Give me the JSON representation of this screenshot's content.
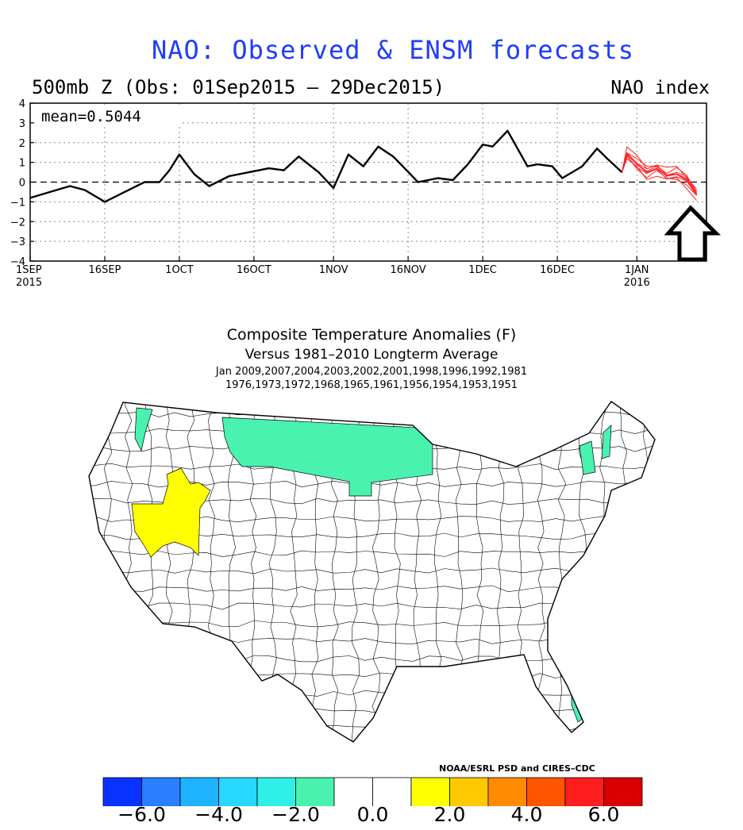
{
  "header": {
    "title": "NAO: Observed & ENSM forecasts",
    "subtitle": "500mb Z (Obs: 01Sep2015 – 29Dec2015)",
    "index_label": "NAO index",
    "mean_label": "mean=0.5044"
  },
  "composite": {
    "title": "Composite Temperature Anomalies (F)",
    "subtitle": "Versus 1981–2010 Longterm Average",
    "years_line1": "Jan  2009,2007,2004,2003,2002,2001,1998,1996,1992,1981",
    "years_line2": "1976,1973,1972,1968,1965,1961,1956,1954,1953,1951",
    "credit": "NOAA/ESRL PSD and CIRES–CDC",
    "colors": [
      "#0a32ff",
      "#2a7eff",
      "#1fb2ff",
      "#28d8ff",
      "#2ef0e6",
      "#4af2b0",
      "#ffffff",
      "#ffffff",
      "#ffff00",
      "#ffc800",
      "#ff8c00",
      "#ff5500",
      "#ff1e1e",
      "#d80000"
    ],
    "colorbar_labels": [
      "−6.0",
      "−4.0",
      "−2.0",
      "0.0",
      "2.0",
      "4.0",
      "6.0"
    ],
    "map_palette": {
      "cool": "#4af2b0",
      "warm": "#ffff00"
    }
  },
  "chart_data": [
    {
      "type": "line",
      "title": "NAO: Observed & ENSM forecasts",
      "ylabel": "NAO index",
      "ylim": [
        -4,
        4
      ],
      "y_ticks": [
        "4",
        "3",
        "2",
        "1",
        "0",
        "−1",
        "−2",
        "−3",
        "−4"
      ],
      "x_ticks": [
        "1SEP",
        "16SEP",
        "1OCT",
        "16OCT",
        "1NOV",
        "16NOV",
        "1DEC",
        "16DEC",
        "1JAN"
      ],
      "x_year_labels": [
        "2015",
        "2016"
      ],
      "mean": 0.5044,
      "grid": true,
      "series": [
        {
          "color": "#000000",
          "x": [
            "2015-09-01",
            "2015-09-05",
            "2015-09-09",
            "2015-09-12",
            "2015-09-16",
            "2015-09-20",
            "2015-09-24",
            "2015-09-27",
            "2015-09-29",
            "2015-10-01",
            "2015-10-04",
            "2015-10-07",
            "2015-10-11",
            "2015-10-15",
            "2015-10-19",
            "2015-10-22",
            "2015-10-25",
            "2015-10-29",
            "2015-11-01",
            "2015-11-04",
            "2015-11-07",
            "2015-11-10",
            "2015-11-13",
            "2015-11-18",
            "2015-11-22",
            "2015-11-25",
            "2015-11-28",
            "2015-12-01",
            "2015-12-03",
            "2015-12-06",
            "2015-12-10",
            "2015-12-12",
            "2015-12-15",
            "2015-12-17",
            "2015-12-21",
            "2015-12-24",
            "2015-12-26",
            "2015-12-29"
          ],
          "values": [
            -0.8,
            -0.5,
            -0.2,
            -0.4,
            -1.0,
            -0.5,
            0.0,
            0.0,
            0.6,
            1.4,
            0.4,
            -0.2,
            0.3,
            0.5,
            0.7,
            0.6,
            1.3,
            0.5,
            -0.3,
            1.4,
            0.8,
            1.8,
            1.3,
            0.0,
            0.2,
            0.1,
            0.9,
            1.9,
            1.8,
            2.6,
            0.8,
            0.9,
            0.8,
            0.2,
            0.8,
            1.7,
            1.2,
            0.5
          ]
        },
        {
          "name": "ENSM forecasts",
          "color": "#ff2020",
          "x": [
            "2015-12-29",
            "2015-12-30",
            "2016-01-01",
            "2016-01-03",
            "2016-01-05",
            "2016-01-07",
            "2016-01-09",
            "2016-01-11",
            "2016-01-13"
          ],
          "values": [
            0.5,
            1.4,
            0.9,
            0.5,
            0.7,
            0.3,
            0.4,
            0.1,
            -0.6
          ]
        }
      ]
    },
    {
      "type": "heatmap",
      "title": "Composite Temperature Anomalies (F)",
      "subtitle": "Versus 1981–2010 Longterm Average",
      "colorbar_ticks": [
        -6.0,
        -4.0,
        -2.0,
        0.0,
        2.0,
        4.0,
        6.0
      ],
      "regions": [
        {
          "area": "Northern Plains / Montana",
          "anomaly_range": [
            -2.0,
            -1.0
          ]
        },
        {
          "area": "Western Washington",
          "anomaly_range": [
            -2.0,
            -1.0
          ]
        },
        {
          "area": "Northern New England",
          "anomaly_range": [
            -2.0,
            -1.0
          ]
        },
        {
          "area": "Southeast Florida",
          "anomaly_range": [
            -2.0,
            -1.0
          ]
        },
        {
          "area": "Nevada / Southern Idaho",
          "anomaly_range": [
            1.0,
            2.0
          ]
        }
      ]
    }
  ]
}
